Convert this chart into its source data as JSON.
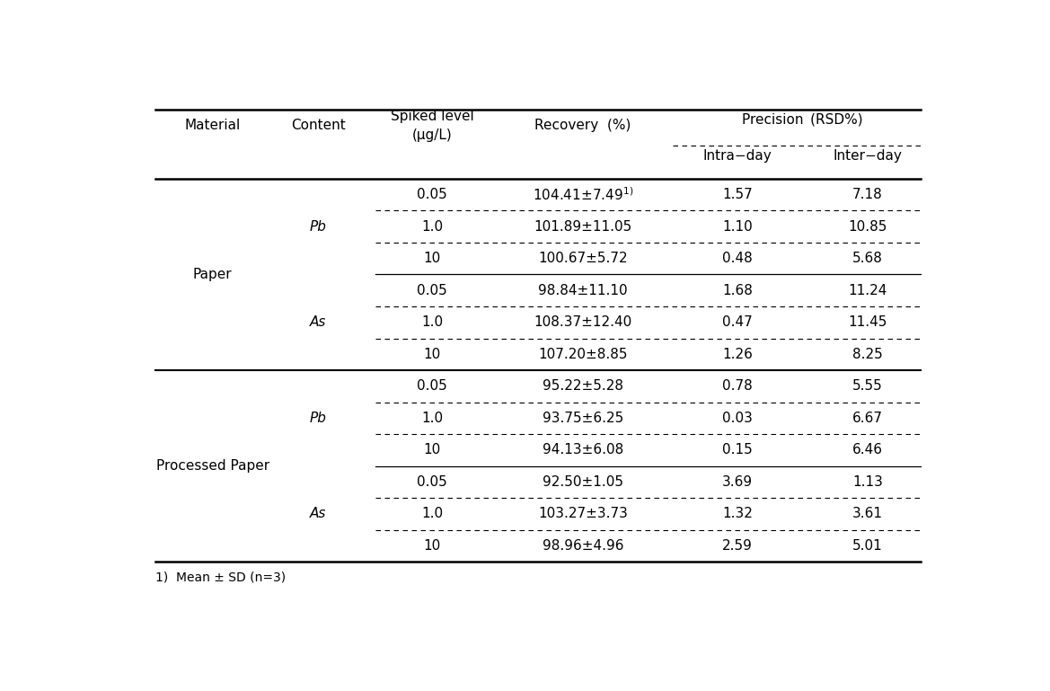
{
  "footnote": "1)  Mean ± SD (n=3)",
  "rows": [
    {
      "spiked": "0.05",
      "recovery": "104.41±7.49",
      "recovery_sup": "1)",
      "intra": "1.57",
      "inter": "7.18"
    },
    {
      "spiked": "1.0",
      "recovery": "101.89±11.05",
      "recovery_sup": "",
      "intra": "1.10",
      "inter": "10.85"
    },
    {
      "spiked": "10",
      "recovery": "100.67±5.72",
      "recovery_sup": "",
      "intra": "0.48",
      "inter": "5.68"
    },
    {
      "spiked": "0.05",
      "recovery": "98.84±11.10",
      "recovery_sup": "",
      "intra": "1.68",
      "inter": "11.24"
    },
    {
      "spiked": "1.0",
      "recovery": "108.37±12.40",
      "recovery_sup": "",
      "intra": "0.47",
      "inter": "11.45"
    },
    {
      "spiked": "10",
      "recovery": "107.20±8.85",
      "recovery_sup": "",
      "intra": "1.26",
      "inter": "8.25"
    },
    {
      "spiked": "0.05",
      "recovery": "95.22±5.28",
      "recovery_sup": "",
      "intra": "0.78",
      "inter": "5.55"
    },
    {
      "spiked": "1.0",
      "recovery": "93.75±6.25",
      "recovery_sup": "",
      "intra": "0.03",
      "inter": "6.67"
    },
    {
      "spiked": "10",
      "recovery": "94.13±6.08",
      "recovery_sup": "",
      "intra": "0.15",
      "inter": "6.46"
    },
    {
      "spiked": "0.05",
      "recovery": "92.50±1.05",
      "recovery_sup": "",
      "intra": "3.69",
      "inter": "1.13"
    },
    {
      "spiked": "1.0",
      "recovery": "103.27±3.73",
      "recovery_sup": "",
      "intra": "1.32",
      "inter": "3.61"
    },
    {
      "spiked": "10",
      "recovery": "98.96±4.96",
      "recovery_sup": "",
      "intra": "2.59",
      "inter": "5.01"
    }
  ],
  "mat_groups": [
    {
      "label": "Paper",
      "start": 0,
      "end": 5
    },
    {
      "label": "Processed Paper",
      "start": 6,
      "end": 11
    }
  ],
  "con_groups": [
    {
      "label": "Pb",
      "start": 0,
      "end": 2
    },
    {
      "label": "As",
      "start": 3,
      "end": 5
    },
    {
      "label": "Pb",
      "start": 6,
      "end": 8
    },
    {
      "label": "As",
      "start": 9,
      "end": 11
    }
  ],
  "font_size": 11,
  "background_color": "#ffffff",
  "text_color": "#000000"
}
